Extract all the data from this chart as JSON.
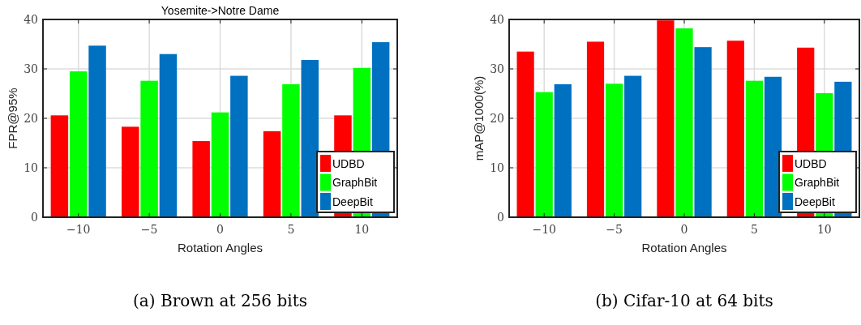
{
  "chart_data": [
    {
      "type": "bar",
      "title": "Yosemite->Notre Dame",
      "xlabel": "Rotation Angles",
      "ylabel": "FPR@95%",
      "categories": [
        "−10",
        "−5",
        "0",
        "5",
        "10"
      ],
      "series": [
        {
          "name": "UDBD",
          "color": "#ff0000",
          "values": [
            20.6,
            18.3,
            15.4,
            17.4,
            20.6
          ]
        },
        {
          "name": "GraphBit",
          "color": "#00ff00",
          "values": [
            29.5,
            27.6,
            21.2,
            26.9,
            30.2
          ]
        },
        {
          "name": "DeepBit",
          "color": "#0070c0",
          "values": [
            34.7,
            33.0,
            28.6,
            31.8,
            35.4
          ]
        }
      ],
      "ylim": [
        0,
        40
      ],
      "yticks": [
        0,
        10,
        20,
        30,
        40
      ],
      "grid": true,
      "legend": "bottom right",
      "annotations": [
        "(a) Brown at 256 bits"
      ]
    },
    {
      "type": "bar",
      "xlabel": "Rotation Angles",
      "ylabel": "mAP@1000(%)",
      "categories": [
        "−10",
        "−5",
        "0",
        "5",
        "10"
      ],
      "series": [
        {
          "name": "UDBD",
          "color": "#ff0000",
          "values": [
            33.5,
            35.5,
            39.8,
            35.7,
            34.3
          ]
        },
        {
          "name": "GraphBit",
          "color": "#00ff00",
          "values": [
            25.3,
            27.0,
            38.2,
            27.6,
            25.1
          ]
        },
        {
          "name": "DeepBit",
          "color": "#0070c0",
          "values": [
            26.9,
            28.6,
            34.4,
            28.4,
            27.4
          ]
        }
      ],
      "ylim": [
        0,
        40
      ],
      "yticks": [
        0,
        10,
        20,
        30,
        40
      ],
      "grid": true,
      "legend": "bottom right",
      "annotations": [
        "(b) Cifar-10 at 64 bits"
      ]
    }
  ]
}
